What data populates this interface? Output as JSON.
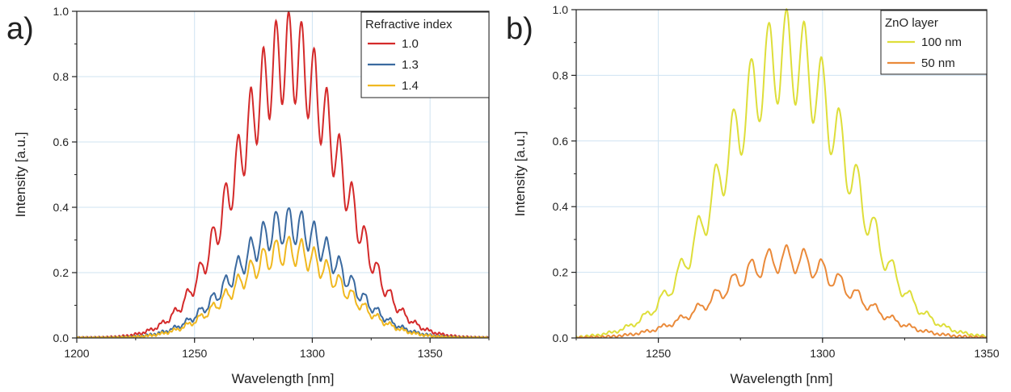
{
  "chart_data": [
    {
      "type": "line",
      "panel_label": "a)",
      "xlabel": "Wavelength [nm]",
      "ylabel": "Intensity [a.u.]",
      "xlim": [
        1200,
        1375
      ],
      "ylim": [
        0,
        1.0
      ],
      "xticks": [
        1200,
        1250,
        1300,
        1350
      ],
      "yticks": [
        0.0,
        0.2,
        0.4,
        0.6,
        0.8,
        1.0
      ],
      "grid": true,
      "legend": {
        "title": "Refractive index",
        "position": "top-right"
      },
      "series": [
        {
          "name": "1.0",
          "color": "#d42a2a",
          "amplitude": 0.62,
          "peak": 1.0
        },
        {
          "name": "1.3",
          "color": "#3b6aa0",
          "amplitude": 0.16,
          "peak": 0.4
        },
        {
          "name": "1.4",
          "color": "#f0b820",
          "amplitude": 0.14,
          "peak": 0.31
        }
      ],
      "center": 1290,
      "sigma": 22,
      "fringe_period": 5.4
    },
    {
      "type": "line",
      "panel_label": "b)",
      "xlabel": "Wavelength [nm]",
      "ylabel": "Intensity [a.u.]",
      "xlim": [
        1225,
        1350
      ],
      "ylim": [
        0,
        1.0
      ],
      "xticks": [
        1250,
        1300,
        1350
      ],
      "yticks": [
        0.0,
        0.2,
        0.4,
        0.6,
        0.8,
        1.0
      ],
      "grid": true,
      "legend": {
        "title": "ZnO layer",
        "position": "top-right"
      },
      "series": [
        {
          "name": "100 nm",
          "color": "#dede3a",
          "amplitude": 0.62,
          "peak": 1.0
        },
        {
          "name": "50 nm",
          "color": "#ea8a3a",
          "amplitude": 0.1,
          "peak": 0.28
        }
      ],
      "center": 1289,
      "sigma": 19,
      "fringe_period": 5.4
    }
  ]
}
